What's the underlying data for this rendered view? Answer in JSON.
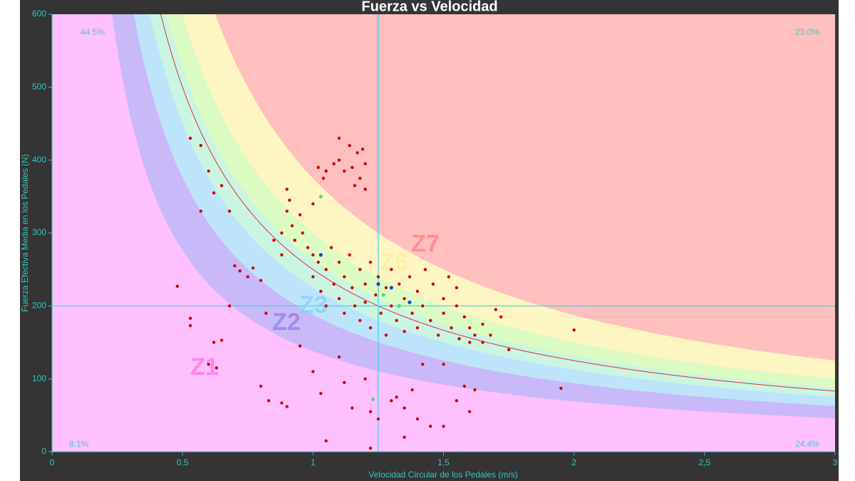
{
  "chart_data": {
    "type": "scatter",
    "title": "Fuerza vs Velocidad",
    "x_label": "Velocidad Circular de los Pedales (m/s)",
    "y_label": "Fuerza Efectiva Media en los Pedales (N)",
    "xlim": [
      0,
      3
    ],
    "ylim": [
      0,
      600
    ],
    "xticks": [
      0,
      {
        "value": 0.5,
        "label": "0,5"
      },
      1,
      {
        "value": 1.5,
        "label": "1,5"
      },
      2,
      {
        "value": 2.5,
        "label": "2,5"
      },
      3
    ],
    "yticks": [
      0,
      100,
      200,
      300,
      400,
      500,
      600
    ],
    "x_ref": 1.25,
    "y_ref": 200,
    "ftp": 250,
    "curve_color": "#dd3333",
    "zone_power": [
      138,
      188,
      225,
      263,
      300,
      375
    ],
    "zone_colors": [
      "#ffc0ff",
      "#c9b9f8",
      "#bde4fb",
      "#c9f5e2",
      "#dcfbc2",
      "#fdf5c2",
      "#ffbfbf"
    ],
    "zone_labels": [
      "Z1",
      "Z2",
      "Z3",
      "Z6",
      "Z7"
    ],
    "quadrant_labels": [
      "44.5%",
      "23.0%",
      "8.1%",
      "24.4%"
    ],
    "series": [
      {
        "color": "#d10000",
        "x": [
          1.02,
          1.05,
          1.08,
          1.1,
          1.12,
          1.14,
          1.15,
          1.17,
          1.18,
          1.2,
          1.2,
          1.19,
          1.16,
          1.04,
          1.1,
          0.88,
          0.9,
          0.9,
          0.91,
          0.92,
          0.93,
          0.95,
          0.96,
          0.98,
          1.0,
          0.85,
          0.88,
          1.0,
          1.0,
          1.02,
          1.03,
          1.05,
          1.05,
          1.07,
          1.08,
          1.1,
          1.1,
          1.12,
          1.12,
          1.14,
          1.15,
          1.16,
          1.18,
          1.18,
          1.2,
          1.2,
          1.22,
          1.22,
          1.24,
          1.25,
          1.26,
          1.28,
          1.28,
          1.3,
          1.3,
          1.32,
          1.33,
          1.35,
          1.35,
          1.37,
          1.38,
          1.4,
          1.4,
          1.42,
          1.43,
          1.45,
          1.46,
          1.48,
          1.5,
          1.5,
          1.52,
          1.53,
          1.55,
          1.56,
          1.58,
          1.6,
          1.62,
          1.6,
          1.55,
          1.0,
          1.03,
          1.1,
          1.12,
          1.15,
          1.2,
          1.22,
          1.25,
          1.3,
          1.32,
          1.35,
          1.38,
          1.4,
          1.42,
          1.45,
          1.5,
          1.55,
          1.58,
          1.6,
          1.62,
          1.5,
          1.35,
          1.22,
          1.05,
          1.65,
          1.68,
          1.7,
          1.72,
          1.75,
          2.0,
          1.95,
          1.65,
          0.53,
          0.57,
          0.6,
          0.62,
          0.57,
          0.65,
          0.68,
          0.48,
          0.53,
          0.53,
          0.6,
          0.62,
          0.65,
          0.63,
          0.68,
          0.7,
          0.72,
          0.75,
          0.8,
          0.82,
          0.8,
          0.83,
          0.88,
          0.9,
          0.95,
          0.77
        ],
        "y": [
          390,
          385,
          395,
          430,
          385,
          420,
          390,
          410,
          375,
          360,
          395,
          415,
          365,
          375,
          400,
          300,
          360,
          330,
          345,
          310,
          290,
          325,
          300,
          280,
          340,
          290,
          270,
          270,
          240,
          260,
          220,
          250,
          200,
          280,
          230,
          260,
          210,
          240,
          190,
          270,
          225,
          200,
          250,
          180,
          230,
          205,
          260,
          170,
          215,
          240,
          190,
          225,
          160,
          250,
          200,
          180,
          230,
          210,
          165,
          240,
          190,
          220,
          170,
          200,
          250,
          180,
          230,
          160,
          210,
          190,
          240,
          170,
          200,
          155,
          185,
          170,
          160,
          150,
          225,
          110,
          80,
          130,
          95,
          60,
          100,
          55,
          45,
          70,
          75,
          60,
          85,
          45,
          120,
          35,
          35,
          70,
          90,
          55,
          85,
          120,
          20,
          5,
          15,
          175,
          160,
          195,
          185,
          140,
          167,
          87,
          150,
          430,
          420,
          385,
          355,
          330,
          365,
          330,
          227,
          183,
          173,
          120,
          150,
          153,
          115,
          200,
          255,
          248,
          240,
          235,
          190,
          90,
          70,
          67,
          62,
          145,
          252
        ]
      },
      {
        "color": "#44dd88",
        "x": [
          1.03,
          1.23,
          1.27,
          1.33
        ],
        "y": [
          350,
          72,
          215,
          200
        ]
      },
      {
        "color": "#2244cc",
        "x": [
          1.03,
          1.3,
          1.37,
          1.25
        ],
        "y": [
          270,
          225,
          205,
          230
        ]
      }
    ]
  }
}
